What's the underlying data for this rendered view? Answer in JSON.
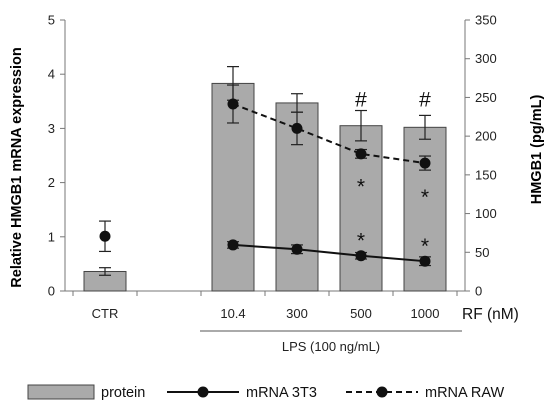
{
  "chart_data": {
    "type": "bar",
    "categories": [
      "CTR",
      "",
      "10.4",
      "300",
      "500",
      "1000"
    ],
    "x_unit_label": "RF (nM)",
    "group_label": "LPS (100 ng/mL)",
    "ylabel_left": "Relative HMGB1 mRNA expression",
    "ylabel_right": "HMGB1 (pg/mL)",
    "ylim_left": [
      0,
      5
    ],
    "ylim_right": [
      0,
      350
    ],
    "yticks_left": [
      "0",
      "1",
      "2",
      "3",
      "4",
      "5"
    ],
    "yticks_right": [
      "0",
      "50",
      "100",
      "150",
      "200",
      "250",
      "300",
      "350"
    ],
    "grid": false,
    "legend_position": "bottom",
    "series": [
      {
        "name": "protein",
        "kind": "bar",
        "axis": "left",
        "color": "#aaaaaa",
        "values": [
          0.36,
          null,
          3.83,
          3.47,
          3.05,
          3.02
        ],
        "errors": [
          0.07,
          null,
          0.31,
          0.17,
          0.28,
          0.22
        ]
      },
      {
        "name": "mRNA 3T3",
        "kind": "line-solid",
        "axis": "left",
        "color": "#111111",
        "values": [
          null,
          null,
          0.85,
          0.77,
          0.65,
          0.55
        ],
        "errors": [
          null,
          null,
          0.06,
          0.08,
          0.06,
          0.08
        ]
      },
      {
        "name": "mRNA RAW",
        "kind": "line-dashed",
        "axis": "left",
        "color": "#111111",
        "values": [
          1.01,
          null,
          3.45,
          3.0,
          2.53,
          2.36
        ],
        "errors": [
          0.28,
          null,
          0.35,
          0.3,
          0.08,
          0.13
        ]
      }
    ],
    "annotations": [
      {
        "category": "500",
        "symbol": "#",
        "value": 3.55
      },
      {
        "category": "1000",
        "symbol": "#",
        "value": 3.55
      },
      {
        "category": "500",
        "symbol": "*",
        "value": 1.95
      },
      {
        "category": "1000",
        "symbol": "*",
        "value": 1.75
      },
      {
        "category": "500",
        "symbol": "*",
        "value": 0.95
      },
      {
        "category": "1000",
        "symbol": "*",
        "value": 0.85
      }
    ]
  }
}
